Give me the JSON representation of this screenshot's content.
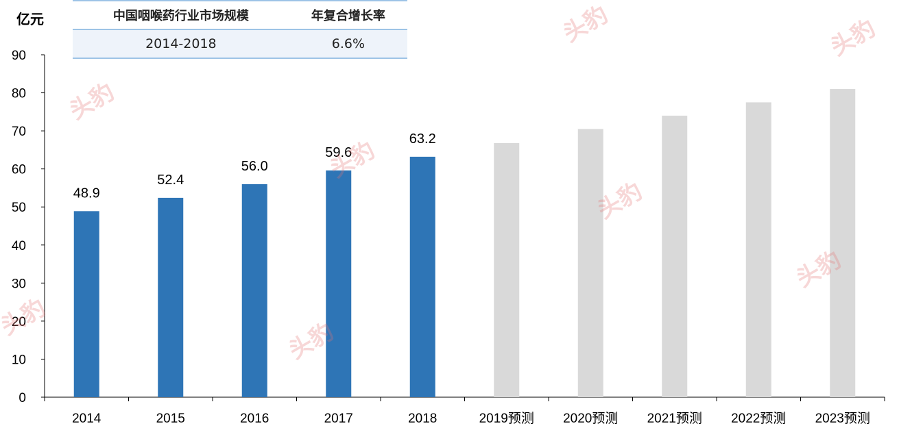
{
  "table": {
    "headers": [
      "中国咽喉药行业市场规模",
      "年复合增长率"
    ],
    "row": [
      "2014-2018",
      "6.6%"
    ]
  },
  "watermark": "头豹",
  "colors": {
    "actual": "#2e75b6",
    "forecast": "#d9d9d9"
  },
  "chart_data": {
    "type": "bar",
    "ylabel": "亿元",
    "ylim": [
      0,
      90
    ],
    "yticks": [
      0,
      10,
      20,
      30,
      40,
      50,
      60,
      70,
      80,
      90
    ],
    "categories": [
      "2014",
      "2015",
      "2016",
      "2017",
      "2018",
      "2019预测",
      "2020预测",
      "2021预测",
      "2022预测",
      "2023预测"
    ],
    "values": [
      48.9,
      52.4,
      56.0,
      59.6,
      63.2,
      66.8,
      70.5,
      74.0,
      77.5,
      81.0
    ],
    "data_labels": [
      "48.9",
      "52.4",
      "56.0",
      "59.6",
      "63.2",
      "",
      "",
      "",
      "",
      ""
    ],
    "forecast_from_index": 5
  }
}
